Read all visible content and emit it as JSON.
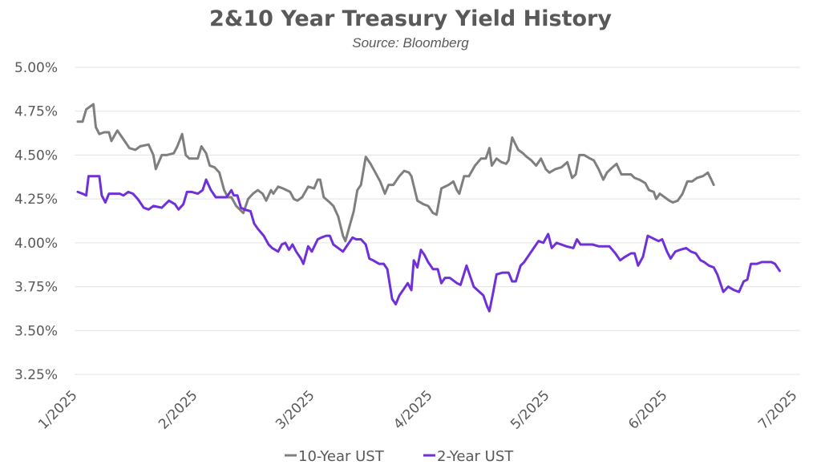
{
  "chart_data": {
    "type": "line",
    "title": "2&10 Year Treasury Yield History",
    "subtitle": "Source: Bloomberg",
    "xlabel": "",
    "ylabel": "",
    "x_ticks": [
      "1/2025",
      "2/2025",
      "3/2025",
      "4/2025",
      "5/2025",
      "6/2025",
      "7/2025"
    ],
    "y_ticks": [
      "5.00%",
      "4.75%",
      "4.50%",
      "4.25%",
      "4.00%",
      "3.75%",
      "3.50%",
      "3.25%"
    ],
    "ylim": [
      3.25,
      5.0
    ],
    "xlim": [
      0,
      6
    ],
    "grid": "horizontal",
    "legend_position": "bottom",
    "series": [
      {
        "name": "10-Year UST",
        "color": "#7f7f7f",
        "points": [
          [
            0.0,
            4.69
          ],
          [
            0.04,
            4.69
          ],
          [
            0.07,
            4.76
          ],
          [
            0.11,
            4.78
          ],
          [
            0.13,
            4.79
          ],
          [
            0.15,
            4.66
          ],
          [
            0.18,
            4.62
          ],
          [
            0.22,
            4.63
          ],
          [
            0.26,
            4.63
          ],
          [
            0.28,
            4.58
          ],
          [
            0.33,
            4.64
          ],
          [
            0.37,
            4.6
          ],
          [
            0.43,
            4.54
          ],
          [
            0.48,
            4.53
          ],
          [
            0.52,
            4.55
          ],
          [
            0.59,
            4.56
          ],
          [
            0.63,
            4.5
          ],
          [
            0.65,
            4.42
          ],
          [
            0.7,
            4.5
          ],
          [
            0.74,
            4.5
          ],
          [
            0.8,
            4.51
          ],
          [
            0.83,
            4.55
          ],
          [
            0.87,
            4.62
          ],
          [
            0.9,
            4.5
          ],
          [
            0.93,
            4.48
          ],
          [
            0.97,
            4.48
          ],
          [
            1.0,
            4.48
          ],
          [
            1.03,
            4.55
          ],
          [
            1.07,
            4.51
          ],
          [
            1.1,
            4.44
          ],
          [
            1.14,
            4.43
          ],
          [
            1.18,
            4.4
          ],
          [
            1.22,
            4.3
          ],
          [
            1.25,
            4.26
          ],
          [
            1.28,
            4.26
          ],
          [
            1.32,
            4.21
          ],
          [
            1.38,
            4.17
          ],
          [
            1.42,
            4.25
          ],
          [
            1.46,
            4.28
          ],
          [
            1.5,
            4.3
          ],
          [
            1.54,
            4.28
          ],
          [
            1.57,
            4.24
          ],
          [
            1.61,
            4.3
          ],
          [
            1.63,
            4.28
          ],
          [
            1.67,
            4.32
          ],
          [
            1.71,
            4.31
          ],
          [
            1.77,
            4.29
          ],
          [
            1.8,
            4.25
          ],
          [
            1.83,
            4.24
          ],
          [
            1.87,
            4.26
          ],
          [
            1.92,
            4.32
          ],
          [
            1.97,
            4.31
          ],
          [
            2.0,
            4.36
          ],
          [
            2.02,
            4.36
          ],
          [
            2.05,
            4.26
          ],
          [
            2.1,
            4.23
          ],
          [
            2.13,
            4.21
          ],
          [
            2.17,
            4.15
          ],
          [
            2.21,
            4.04
          ],
          [
            2.23,
            4.01
          ],
          [
            2.3,
            4.18
          ],
          [
            2.33,
            4.3
          ],
          [
            2.36,
            4.33
          ],
          [
            2.4,
            4.49
          ],
          [
            2.44,
            4.45
          ],
          [
            2.48,
            4.4
          ],
          [
            2.52,
            4.35
          ],
          [
            2.56,
            4.28
          ],
          [
            2.59,
            4.33
          ],
          [
            2.63,
            4.33
          ],
          [
            2.68,
            4.38
          ],
          [
            2.72,
            4.41
          ],
          [
            2.76,
            4.4
          ],
          [
            2.78,
            4.38
          ],
          [
            2.83,
            4.24
          ],
          [
            2.88,
            4.22
          ],
          [
            2.92,
            4.21
          ],
          [
            2.96,
            4.17
          ],
          [
            2.99,
            4.16
          ],
          [
            3.03,
            4.31
          ],
          [
            3.09,
            4.33
          ],
          [
            3.13,
            4.35
          ],
          [
            3.16,
            4.3
          ],
          [
            3.18,
            4.28
          ],
          [
            3.22,
            4.38
          ],
          [
            3.26,
            4.38
          ],
          [
            3.31,
            4.44
          ],
          [
            3.36,
            4.48
          ],
          [
            3.4,
            4.48
          ],
          [
            3.43,
            4.54
          ],
          [
            3.45,
            4.44
          ],
          [
            3.49,
            4.48
          ],
          [
            3.53,
            4.46
          ],
          [
            3.57,
            4.45
          ],
          [
            3.59,
            4.47
          ],
          [
            3.62,
            4.6
          ],
          [
            3.67,
            4.53
          ],
          [
            3.71,
            4.51
          ],
          [
            3.74,
            4.49
          ],
          [
            3.78,
            4.47
          ],
          [
            3.82,
            4.44
          ],
          [
            3.86,
            4.48
          ],
          [
            3.9,
            4.42
          ],
          [
            3.93,
            4.4
          ],
          [
            3.98,
            4.42
          ],
          [
            4.03,
            4.43
          ],
          [
            4.08,
            4.46
          ],
          [
            4.12,
            4.37
          ],
          [
            4.15,
            4.39
          ],
          [
            4.18,
            4.5
          ],
          [
            4.22,
            4.5
          ],
          [
            4.27,
            4.48
          ],
          [
            4.3,
            4.47
          ],
          [
            4.34,
            4.42
          ],
          [
            4.38,
            4.36
          ],
          [
            4.41,
            4.4
          ],
          [
            4.44,
            4.42
          ],
          [
            4.49,
            4.45
          ],
          [
            4.53,
            4.39
          ],
          [
            4.57,
            4.39
          ],
          [
            4.61,
            4.39
          ],
          [
            4.64,
            4.37
          ],
          [
            4.68,
            4.36
          ],
          [
            4.73,
            4.34
          ],
          [
            4.76,
            4.3
          ],
          [
            4.8,
            4.29
          ],
          [
            4.82,
            4.25
          ],
          [
            4.85,
            4.28
          ],
          [
            4.89,
            4.26
          ],
          [
            4.93,
            4.24
          ],
          [
            4.96,
            4.23
          ],
          [
            5.0,
            4.24
          ],
          [
            5.04,
            4.28
          ],
          [
            5.08,
            4.35
          ],
          [
            5.12,
            4.35
          ],
          [
            5.16,
            4.37
          ],
          [
            5.21,
            4.38
          ],
          [
            5.25,
            4.4
          ],
          [
            5.28,
            4.36
          ],
          [
            5.3,
            4.33
          ]
        ]
      },
      {
        "name": "2-Year UST",
        "color": "#7030d8",
        "points": [
          [
            0.0,
            4.29
          ],
          [
            0.04,
            4.28
          ],
          [
            0.07,
            4.27
          ],
          [
            0.09,
            4.38
          ],
          [
            0.13,
            4.38
          ],
          [
            0.18,
            4.38
          ],
          [
            0.2,
            4.27
          ],
          [
            0.23,
            4.23
          ],
          [
            0.26,
            4.28
          ],
          [
            0.3,
            4.28
          ],
          [
            0.35,
            4.28
          ],
          [
            0.38,
            4.27
          ],
          [
            0.42,
            4.29
          ],
          [
            0.46,
            4.28
          ],
          [
            0.5,
            4.25
          ],
          [
            0.55,
            4.2
          ],
          [
            0.59,
            4.19
          ],
          [
            0.63,
            4.21
          ],
          [
            0.7,
            4.2
          ],
          [
            0.76,
            4.24
          ],
          [
            0.81,
            4.22
          ],
          [
            0.84,
            4.19
          ],
          [
            0.88,
            4.22
          ],
          [
            0.91,
            4.29
          ],
          [
            0.95,
            4.29
          ],
          [
            1.0,
            4.28
          ],
          [
            1.04,
            4.3
          ],
          [
            1.07,
            4.36
          ],
          [
            1.11,
            4.3
          ],
          [
            1.15,
            4.26
          ],
          [
            1.19,
            4.26
          ],
          [
            1.24,
            4.26
          ],
          [
            1.28,
            4.3
          ],
          [
            1.3,
            4.27
          ],
          [
            1.33,
            4.27
          ],
          [
            1.36,
            4.2
          ],
          [
            1.39,
            4.19
          ],
          [
            1.44,
            4.18
          ],
          [
            1.47,
            4.11
          ],
          [
            1.5,
            4.08
          ],
          [
            1.55,
            4.04
          ],
          [
            1.59,
            3.99
          ],
          [
            1.62,
            3.97
          ],
          [
            1.67,
            3.95
          ],
          [
            1.7,
            3.99
          ],
          [
            1.73,
            4.0
          ],
          [
            1.76,
            3.96
          ],
          [
            1.79,
            3.99
          ],
          [
            1.82,
            3.95
          ],
          [
            1.86,
            3.91
          ],
          [
            1.88,
            3.88
          ],
          [
            1.92,
            3.98
          ],
          [
            1.95,
            3.95
          ],
          [
            2.0,
            4.02
          ],
          [
            2.03,
            4.03
          ],
          [
            2.07,
            4.04
          ],
          [
            2.1,
            4.04
          ],
          [
            2.13,
            3.99
          ],
          [
            2.17,
            3.97
          ],
          [
            2.21,
            3.95
          ],
          [
            2.25,
            3.99
          ],
          [
            2.29,
            4.03
          ],
          [
            2.32,
            4.02
          ],
          [
            2.36,
            4.02
          ],
          [
            2.4,
            3.99
          ],
          [
            2.43,
            3.91
          ],
          [
            2.46,
            3.9
          ],
          [
            2.51,
            3.88
          ],
          [
            2.55,
            3.88
          ],
          [
            2.58,
            3.85
          ],
          [
            2.62,
            3.68
          ],
          [
            2.65,
            3.65
          ],
          [
            2.68,
            3.7
          ],
          [
            2.72,
            3.74
          ],
          [
            2.75,
            3.77
          ],
          [
            2.78,
            3.73
          ],
          [
            2.8,
            3.9
          ],
          [
            2.83,
            3.86
          ],
          [
            2.86,
            3.96
          ],
          [
            2.89,
            3.93
          ],
          [
            2.92,
            3.89
          ],
          [
            2.96,
            3.85
          ],
          [
            3.0,
            3.85
          ],
          [
            3.03,
            3.77
          ],
          [
            3.06,
            3.8
          ],
          [
            3.1,
            3.8
          ],
          [
            3.16,
            3.77
          ],
          [
            3.19,
            3.76
          ],
          [
            3.24,
            3.87
          ],
          [
            3.28,
            3.79
          ],
          [
            3.3,
            3.75
          ],
          [
            3.38,
            3.7
          ],
          [
            3.41,
            3.64
          ],
          [
            3.43,
            3.61
          ],
          [
            3.46,
            3.71
          ],
          [
            3.49,
            3.82
          ],
          [
            3.54,
            3.83
          ],
          [
            3.59,
            3.83
          ],
          [
            3.62,
            3.78
          ],
          [
            3.65,
            3.78
          ],
          [
            3.69,
            3.87
          ],
          [
            3.72,
            3.89
          ],
          [
            3.76,
            3.93
          ],
          [
            3.8,
            3.97
          ],
          [
            3.84,
            4.01
          ],
          [
            3.88,
            4.0
          ],
          [
            3.92,
            4.05
          ],
          [
            3.95,
            3.97
          ],
          [
            3.99,
            4.0
          ],
          [
            4.03,
            3.99
          ],
          [
            4.07,
            3.98
          ],
          [
            4.13,
            3.97
          ],
          [
            4.16,
            4.02
          ],
          [
            4.19,
            3.99
          ],
          [
            4.24,
            3.99
          ],
          [
            4.29,
            3.99
          ],
          [
            4.34,
            3.98
          ],
          [
            4.39,
            3.98
          ],
          [
            4.43,
            3.98
          ],
          [
            4.48,
            3.94
          ],
          [
            4.52,
            3.9
          ],
          [
            4.56,
            3.92
          ],
          [
            4.61,
            3.94
          ],
          [
            4.64,
            3.94
          ],
          [
            4.67,
            3.87
          ],
          [
            4.71,
            3.92
          ],
          [
            4.75,
            4.04
          ],
          [
            4.78,
            4.03
          ],
          [
            4.84,
            4.01
          ],
          [
            4.87,
            4.02
          ],
          [
            4.91,
            3.95
          ],
          [
            4.94,
            3.91
          ],
          [
            4.98,
            3.95
          ],
          [
            5.02,
            3.96
          ],
          [
            5.07,
            3.97
          ],
          [
            5.11,
            3.95
          ],
          [
            5.15,
            3.94
          ],
          [
            5.19,
            3.9
          ],
          [
            5.22,
            3.89
          ],
          [
            5.26,
            3.87
          ],
          [
            5.3,
            3.86
          ],
          [
            5.33,
            3.82
          ],
          [
            5.38,
            3.72
          ],
          [
            5.42,
            3.75
          ],
          [
            5.47,
            3.73
          ],
          [
            5.51,
            3.72
          ],
          [
            5.55,
            3.78
          ],
          [
            5.58,
            3.79
          ],
          [
            5.61,
            3.88
          ],
          [
            5.66,
            3.88
          ],
          [
            5.7,
            3.89
          ],
          [
            5.74,
            3.89
          ],
          [
            5.78,
            3.89
          ],
          [
            5.81,
            3.88
          ],
          [
            5.85,
            3.84
          ]
        ]
      }
    ]
  }
}
